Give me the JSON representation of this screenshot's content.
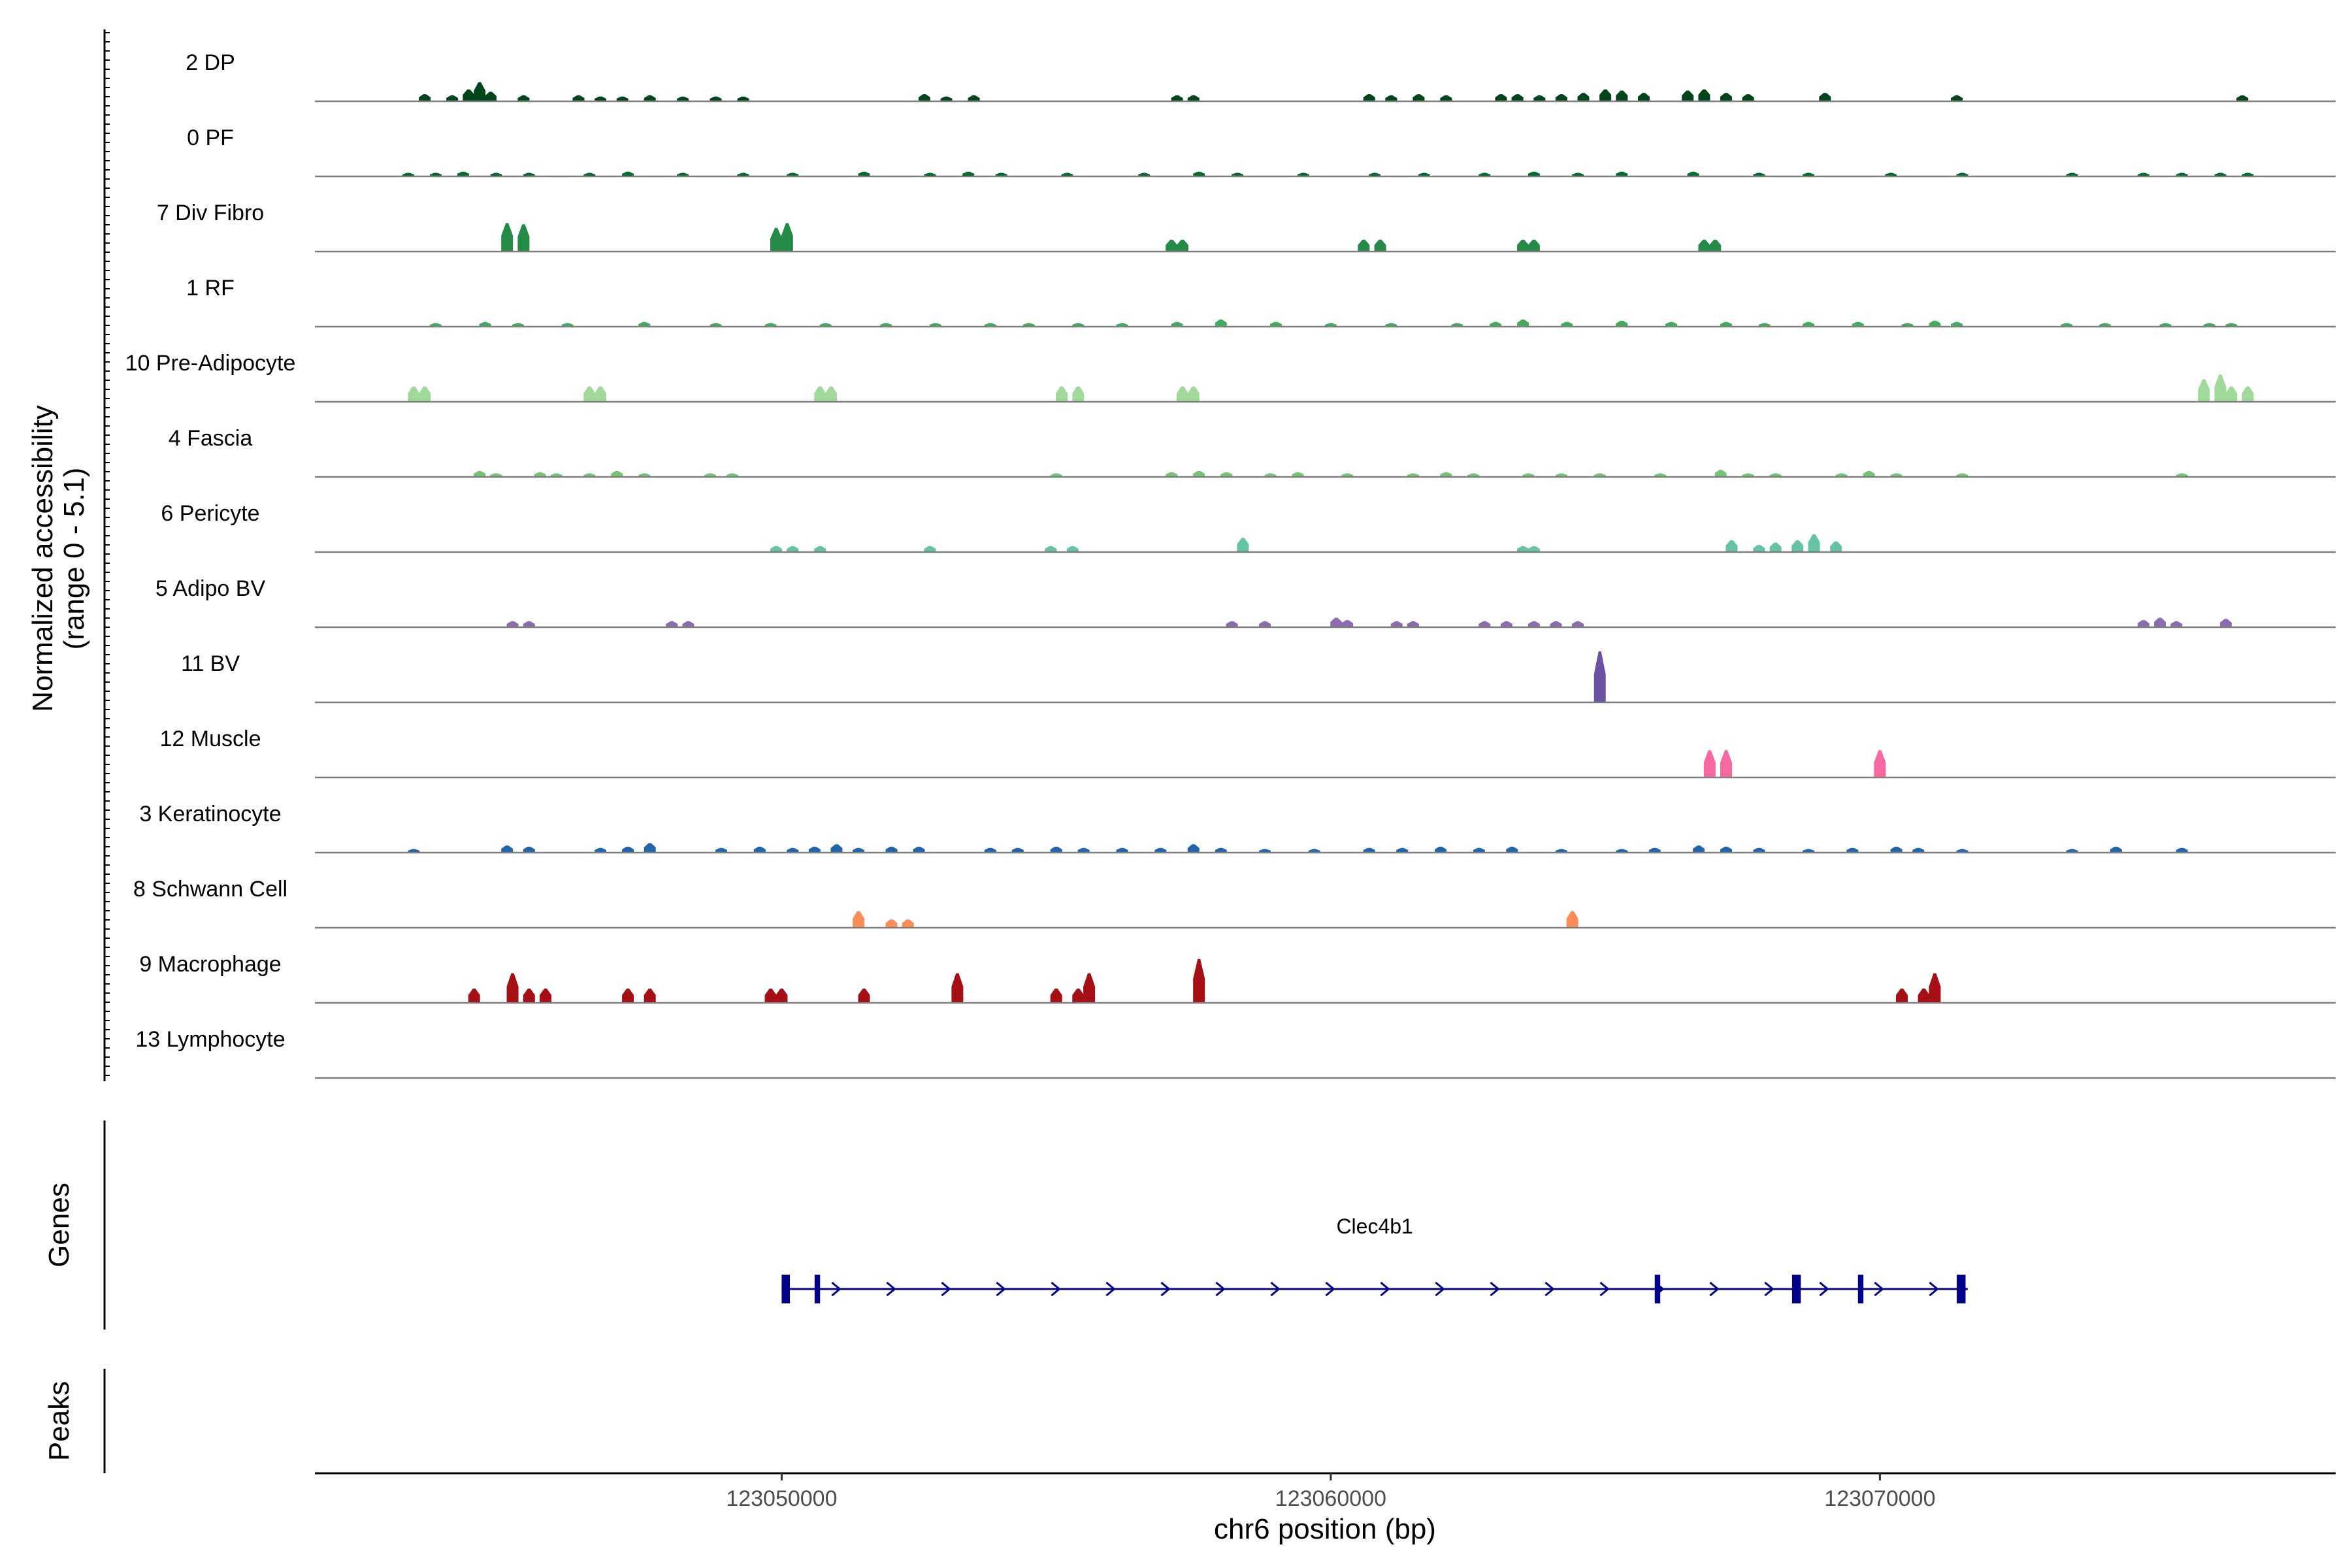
{
  "chart_data": {
    "type": "genome_coverage_tracks",
    "title": "",
    "ylabel_line1": "Normalized accessibility",
    "ylabel_line2": "(range 0 - 5.1)",
    "y_range": [
      0,
      5.1
    ],
    "xlabel": "chr6 position (bp)",
    "x_range": [
      123041500,
      123078300
    ],
    "x_ticks": [
      123050000,
      123060000,
      123070000
    ],
    "x_tick_labels": [
      "123050000",
      "123060000",
      "123070000"
    ],
    "tracks": [
      {
        "name": "2 DP",
        "color": "#00441b",
        "peaks": [
          [
            123043500,
            0.6
          ],
          [
            123044000,
            0.5
          ],
          [
            123044300,
            1.0
          ],
          [
            123044500,
            1.6
          ],
          [
            123044700,
            0.8
          ],
          [
            123045300,
            0.5
          ],
          [
            123046300,
            0.5
          ],
          [
            123046700,
            0.4
          ],
          [
            123047100,
            0.4
          ],
          [
            123047600,
            0.5
          ],
          [
            123048200,
            0.4
          ],
          [
            123048800,
            0.4
          ],
          [
            123049300,
            0.4
          ],
          [
            123052600,
            0.6
          ],
          [
            123053000,
            0.4
          ],
          [
            123053500,
            0.5
          ],
          [
            123057200,
            0.5
          ],
          [
            123057500,
            0.5
          ],
          [
            123060700,
            0.6
          ],
          [
            123061100,
            0.5
          ],
          [
            123061600,
            0.6
          ],
          [
            123062100,
            0.5
          ],
          [
            123063100,
            0.6
          ],
          [
            123063400,
            0.6
          ],
          [
            123063800,
            0.5
          ],
          [
            123064200,
            0.6
          ],
          [
            123064600,
            0.7
          ],
          [
            123065000,
            1.0
          ],
          [
            123065300,
            0.9
          ],
          [
            123065700,
            0.7
          ],
          [
            123066500,
            0.9
          ],
          [
            123066800,
            1.0
          ],
          [
            123067200,
            0.7
          ],
          [
            123067600,
            0.6
          ],
          [
            123069000,
            0.7
          ],
          [
            123071400,
            0.5
          ],
          [
            123076600,
            0.5
          ]
        ]
      },
      {
        "name": "0 PF",
        "color": "#006d2c",
        "peaks": [
          [
            123043200,
            0.3
          ],
          [
            123043700,
            0.3
          ],
          [
            123044200,
            0.4
          ],
          [
            123044800,
            0.3
          ],
          [
            123045400,
            0.3
          ],
          [
            123046500,
            0.3
          ],
          [
            123047200,
            0.4
          ],
          [
            123048200,
            0.3
          ],
          [
            123049300,
            0.3
          ],
          [
            123050200,
            0.3
          ],
          [
            123051500,
            0.4
          ],
          [
            123052700,
            0.3
          ],
          [
            123053400,
            0.4
          ],
          [
            123054000,
            0.3
          ],
          [
            123055200,
            0.3
          ],
          [
            123056600,
            0.3
          ],
          [
            123057600,
            0.4
          ],
          [
            123058300,
            0.3
          ],
          [
            123059500,
            0.3
          ],
          [
            123060800,
            0.3
          ],
          [
            123061700,
            0.3
          ],
          [
            123062800,
            0.3
          ],
          [
            123063700,
            0.4
          ],
          [
            123064500,
            0.3
          ],
          [
            123065300,
            0.4
          ],
          [
            123066600,
            0.4
          ],
          [
            123067800,
            0.3
          ],
          [
            123068700,
            0.3
          ],
          [
            123070200,
            0.3
          ],
          [
            123071500,
            0.3
          ],
          [
            123073500,
            0.3
          ],
          [
            123074800,
            0.3
          ],
          [
            123075500,
            0.3
          ],
          [
            123076200,
            0.3
          ],
          [
            123076700,
            0.3
          ]
        ]
      },
      {
        "name": "7 Div Fibro",
        "color": "#238b45",
        "peaks": [
          [
            123045000,
            2.4
          ],
          [
            123045300,
            2.3
          ],
          [
            123049900,
            2.0
          ],
          [
            123050100,
            2.4
          ],
          [
            123057100,
            1.0
          ],
          [
            123057300,
            1.0
          ],
          [
            123060600,
            1.0
          ],
          [
            123060900,
            1.0
          ],
          [
            123063500,
            1.0
          ],
          [
            123063700,
            1.0
          ],
          [
            123066800,
            1.0
          ],
          [
            123067000,
            1.0
          ]
        ]
      },
      {
        "name": "1 RF",
        "color": "#41ab5d",
        "peaks": [
          [
            123043700,
            0.3
          ],
          [
            123044600,
            0.4
          ],
          [
            123045200,
            0.3
          ],
          [
            123046100,
            0.3
          ],
          [
            123047500,
            0.4
          ],
          [
            123048800,
            0.3
          ],
          [
            123049800,
            0.3
          ],
          [
            123050800,
            0.3
          ],
          [
            123051900,
            0.3
          ],
          [
            123052800,
            0.3
          ],
          [
            123053800,
            0.3
          ],
          [
            123054500,
            0.3
          ],
          [
            123055400,
            0.3
          ],
          [
            123056200,
            0.3
          ],
          [
            123057200,
            0.4
          ],
          [
            123058000,
            0.6
          ],
          [
            123059000,
            0.4
          ],
          [
            123060000,
            0.3
          ],
          [
            123061100,
            0.3
          ],
          [
            123062300,
            0.3
          ],
          [
            123063000,
            0.4
          ],
          [
            123063500,
            0.6
          ],
          [
            123064300,
            0.4
          ],
          [
            123065300,
            0.5
          ],
          [
            123066200,
            0.4
          ],
          [
            123067200,
            0.4
          ],
          [
            123067900,
            0.3
          ],
          [
            123068700,
            0.4
          ],
          [
            123069600,
            0.4
          ],
          [
            123070500,
            0.3
          ],
          [
            123071000,
            0.5
          ],
          [
            123071400,
            0.4
          ],
          [
            123073400,
            0.3
          ],
          [
            123074100,
            0.3
          ],
          [
            123075200,
            0.3
          ],
          [
            123076000,
            0.3
          ],
          [
            123076400,
            0.3
          ]
        ]
      },
      {
        "name": "10 Pre-Adipocyte",
        "color": "#a1d99b",
        "peaks": [
          [
            123043300,
            1.3
          ],
          [
            123043500,
            1.3
          ],
          [
            123046500,
            1.3
          ],
          [
            123046700,
            1.3
          ],
          [
            123050700,
            1.3
          ],
          [
            123050900,
            1.3
          ],
          [
            123055100,
            1.3
          ],
          [
            123055400,
            1.3
          ],
          [
            123057300,
            1.3
          ],
          [
            123057500,
            1.3
          ],
          [
            123075900,
            1.9
          ],
          [
            123076200,
            2.3
          ],
          [
            123076400,
            1.3
          ],
          [
            123076700,
            1.3
          ]
        ]
      },
      {
        "name": "4 Fascia",
        "color": "#74c476",
        "peaks": [
          [
            123044500,
            0.5
          ],
          [
            123044800,
            0.3
          ],
          [
            123045600,
            0.4
          ],
          [
            123045900,
            0.3
          ],
          [
            123046500,
            0.3
          ],
          [
            123047000,
            0.5
          ],
          [
            123047500,
            0.3
          ],
          [
            123048700,
            0.3
          ],
          [
            123049100,
            0.3
          ],
          [
            123055000,
            0.3
          ],
          [
            123057100,
            0.4
          ],
          [
            123057600,
            0.5
          ],
          [
            123058100,
            0.4
          ],
          [
            123058900,
            0.3
          ],
          [
            123059400,
            0.4
          ],
          [
            123060300,
            0.3
          ],
          [
            123061500,
            0.3
          ],
          [
            123062100,
            0.4
          ],
          [
            123062600,
            0.3
          ],
          [
            123063600,
            0.3
          ],
          [
            123064200,
            0.3
          ],
          [
            123064900,
            0.3
          ],
          [
            123066000,
            0.3
          ],
          [
            123067100,
            0.6
          ],
          [
            123067600,
            0.3
          ],
          [
            123068100,
            0.3
          ],
          [
            123069300,
            0.3
          ],
          [
            123069800,
            0.5
          ],
          [
            123070300,
            0.3
          ],
          [
            123071500,
            0.3
          ],
          [
            123075500,
            0.3
          ]
        ]
      },
      {
        "name": "6 Pericyte",
        "color": "#66c2a4",
        "peaks": [
          [
            123049900,
            0.5
          ],
          [
            123050200,
            0.5
          ],
          [
            123050700,
            0.5
          ],
          [
            123052700,
            0.5
          ],
          [
            123054900,
            0.5
          ],
          [
            123055300,
            0.5
          ],
          [
            123058400,
            1.2
          ],
          [
            123063500,
            0.5
          ],
          [
            123063700,
            0.5
          ],
          [
            123067300,
            1.0
          ],
          [
            123067800,
            0.6
          ],
          [
            123068100,
            0.8
          ],
          [
            123068500,
            1.0
          ],
          [
            123068800,
            1.5
          ],
          [
            123069200,
            0.9
          ]
        ]
      },
      {
        "name": "5 Adipo BV",
        "color": "#8c6bb1",
        "peaks": [
          [
            123045100,
            0.5
          ],
          [
            123045400,
            0.5
          ],
          [
            123048000,
            0.5
          ],
          [
            123048300,
            0.5
          ],
          [
            123058200,
            0.5
          ],
          [
            123058800,
            0.5
          ],
          [
            123060100,
            0.8
          ],
          [
            123060300,
            0.6
          ],
          [
            123061200,
            0.5
          ],
          [
            123061500,
            0.5
          ],
          [
            123062800,
            0.5
          ],
          [
            123063200,
            0.5
          ],
          [
            123063700,
            0.5
          ],
          [
            123064100,
            0.5
          ],
          [
            123064500,
            0.5
          ],
          [
            123074800,
            0.6
          ],
          [
            123075100,
            0.8
          ],
          [
            123075400,
            0.5
          ],
          [
            123076300,
            0.7
          ]
        ]
      },
      {
        "name": "11 BV",
        "color": "#6a51a3",
        "peaks": [
          [
            123064900,
            4.3
          ]
        ]
      },
      {
        "name": "12 Muscle",
        "color": "#f768a1",
        "peaks": [
          [
            123066900,
            2.3
          ],
          [
            123067200,
            2.3
          ],
          [
            123070000,
            2.3
          ]
        ]
      },
      {
        "name": "3 Keratinocyte",
        "color": "#2166ac",
        "peaks": [
          [
            123043300,
            0.3
          ],
          [
            123045000,
            0.6
          ],
          [
            123045400,
            0.5
          ],
          [
            123046700,
            0.4
          ],
          [
            123047200,
            0.5
          ],
          [
            123047600,
            0.8
          ],
          [
            123048900,
            0.4
          ],
          [
            123049600,
            0.5
          ],
          [
            123050200,
            0.4
          ],
          [
            123050600,
            0.5
          ],
          [
            123051000,
            0.7
          ],
          [
            123051400,
            0.4
          ],
          [
            123052000,
            0.5
          ],
          [
            123052500,
            0.5
          ],
          [
            123053800,
            0.4
          ],
          [
            123054300,
            0.4
          ],
          [
            123055000,
            0.5
          ],
          [
            123055500,
            0.4
          ],
          [
            123056200,
            0.4
          ],
          [
            123056900,
            0.4
          ],
          [
            123057500,
            0.7
          ],
          [
            123058000,
            0.4
          ],
          [
            123058800,
            0.3
          ],
          [
            123059700,
            0.3
          ],
          [
            123060700,
            0.4
          ],
          [
            123061300,
            0.4
          ],
          [
            123062000,
            0.5
          ],
          [
            123062700,
            0.4
          ],
          [
            123063300,
            0.5
          ],
          [
            123064200,
            0.3
          ],
          [
            123065300,
            0.3
          ],
          [
            123065900,
            0.4
          ],
          [
            123066700,
            0.6
          ],
          [
            123067200,
            0.5
          ],
          [
            123067800,
            0.4
          ],
          [
            123068700,
            0.3
          ],
          [
            123069500,
            0.4
          ],
          [
            123070300,
            0.5
          ],
          [
            123070700,
            0.4
          ],
          [
            123071500,
            0.3
          ],
          [
            123073500,
            0.3
          ],
          [
            123074300,
            0.5
          ],
          [
            123075500,
            0.4
          ]
        ]
      },
      {
        "name": "8 Schwann Cell",
        "color": "#fc8d59",
        "peaks": [
          [
            123051400,
            1.4
          ],
          [
            123052000,
            0.7
          ],
          [
            123052300,
            0.7
          ],
          [
            123064400,
            1.4
          ]
        ]
      },
      {
        "name": "9 Macrophage",
        "color": "#a50f15",
        "peaks": [
          [
            123044400,
            1.2
          ],
          [
            123045100,
            2.5
          ],
          [
            123045400,
            1.2
          ],
          [
            123045700,
            1.2
          ],
          [
            123047200,
            1.2
          ],
          [
            123047600,
            1.2
          ],
          [
            123049800,
            1.2
          ],
          [
            123050000,
            1.2
          ],
          [
            123051500,
            1.2
          ],
          [
            123053200,
            2.5
          ],
          [
            123055000,
            1.2
          ],
          [
            123055400,
            1.2
          ],
          [
            123055600,
            2.5
          ],
          [
            123057600,
            3.7
          ],
          [
            123070400,
            1.2
          ],
          [
            123070800,
            1.2
          ],
          [
            123071000,
            2.5
          ]
        ]
      },
      {
        "name": "13 Lymphocyte",
        "color": "#525252",
        "peaks": []
      }
    ],
    "genes_label": "Genes",
    "peaks_label": "Peaks",
    "gene": {
      "name": "Clec4b1",
      "start": 123050000,
      "end": 123071600,
      "strand": "+",
      "color": "#00008b",
      "exons": [
        [
          123050000,
          123050150
        ],
        [
          123050600,
          123050700
        ],
        [
          123065900,
          123066000
        ],
        [
          123068400,
          123068560
        ],
        [
          123069600,
          123069700
        ],
        [
          123071400,
          123071560
        ]
      ]
    }
  }
}
